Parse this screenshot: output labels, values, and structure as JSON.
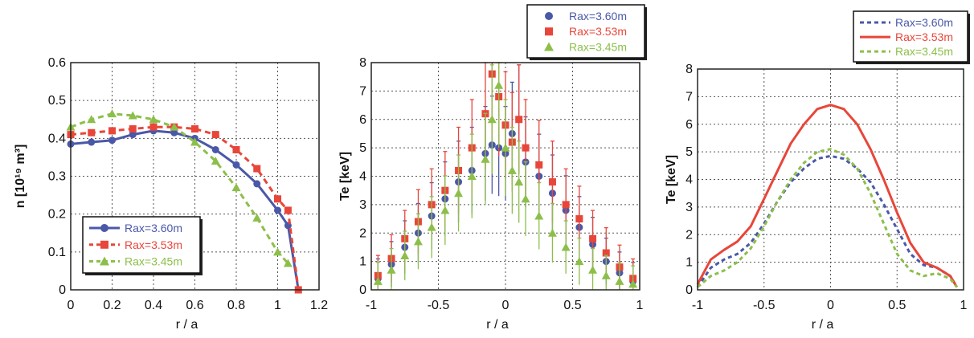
{
  "chart_data": [
    {
      "type": "line",
      "xlabel": "r / a",
      "ylabel": "n [10¹⁹ m³]",
      "xlim": [
        0,
        1.2
      ],
      "ylim": [
        0,
        0.6
      ],
      "xticks": [
        "0",
        "0.2",
        "0.4",
        "0.6",
        "0.8",
        "1",
        "1.2"
      ],
      "yticks": [
        "0",
        "0.1",
        "0.2",
        "0.3",
        "0.4",
        "0.5",
        "0.6"
      ],
      "grid": true,
      "legend_position": "bottom-left",
      "series": [
        {
          "name": "Rax=3.60m",
          "color": "#4a58a8",
          "marker": "circle",
          "dash": "solid",
          "x": [
            0,
            0.1,
            0.2,
            0.3,
            0.4,
            0.5,
            0.6,
            0.7,
            0.8,
            0.9,
            1.0,
            1.05,
            1.1
          ],
          "y": [
            0.385,
            0.39,
            0.395,
            0.41,
            0.42,
            0.415,
            0.4,
            0.37,
            0.33,
            0.28,
            0.21,
            0.17,
            0.0
          ]
        },
        {
          "name": "Rax=3.53m",
          "color": "#e8463a",
          "marker": "square",
          "dash": "dashed",
          "x": [
            0,
            0.1,
            0.2,
            0.3,
            0.4,
            0.5,
            0.6,
            0.7,
            0.8,
            0.9,
            1.0,
            1.05,
            1.1
          ],
          "y": [
            0.41,
            0.415,
            0.42,
            0.425,
            0.43,
            0.43,
            0.425,
            0.41,
            0.37,
            0.32,
            0.24,
            0.21,
            0.0
          ]
        },
        {
          "name": "Rax=3.45m",
          "color": "#8cbf4a",
          "marker": "triangle",
          "dash": "dashed",
          "x": [
            0,
            0.1,
            0.2,
            0.3,
            0.4,
            0.5,
            0.6,
            0.7,
            0.8,
            0.9,
            1.0,
            1.05
          ],
          "y": [
            0.43,
            0.45,
            0.465,
            0.46,
            0.45,
            0.43,
            0.39,
            0.34,
            0.27,
            0.19,
            0.1,
            0.07
          ]
        }
      ]
    },
    {
      "type": "scatter",
      "xlabel": "r / a",
      "ylabel": "Te [keV]",
      "xlim": [
        -1,
        1
      ],
      "ylim": [
        0,
        8
      ],
      "xticks": [
        "-1",
        "-0.5",
        "0",
        "0.5",
        "1"
      ],
      "yticks": [
        "0",
        "1",
        "2",
        "3",
        "4",
        "5",
        "6",
        "7",
        "8"
      ],
      "grid": true,
      "legend_position": "top (outside)",
      "series": [
        {
          "name": "Rax=3.60m",
          "color": "#4a58a8",
          "marker": "circle",
          "error_bars": true,
          "x": [
            -0.95,
            -0.85,
            -0.75,
            -0.65,
            -0.55,
            -0.45,
            -0.35,
            -0.25,
            -0.15,
            -0.1,
            -0.05,
            0.0,
            0.05,
            0.1,
            0.15,
            0.25,
            0.35,
            0.45,
            0.55,
            0.65,
            0.75,
            0.85,
            0.95
          ],
          "y": [
            0.4,
            0.9,
            1.5,
            2.0,
            2.6,
            3.2,
            3.8,
            4.2,
            4.8,
            5.1,
            5.0,
            4.8,
            5.5,
            6.0,
            4.5,
            4.0,
            3.4,
            2.8,
            2.2,
            1.6,
            1.0,
            0.6,
            0.3
          ]
        },
        {
          "name": "Rax=3.53m",
          "color": "#e8463a",
          "marker": "square",
          "error_bars": true,
          "x": [
            -0.95,
            -0.85,
            -0.75,
            -0.65,
            -0.55,
            -0.45,
            -0.35,
            -0.25,
            -0.15,
            -0.1,
            -0.05,
            0.0,
            0.05,
            0.1,
            0.15,
            0.25,
            0.35,
            0.45,
            0.55,
            0.65,
            0.75,
            0.85,
            0.95
          ],
          "y": [
            0.5,
            1.1,
            1.8,
            2.4,
            3.0,
            3.5,
            4.2,
            5.0,
            6.2,
            7.6,
            6.8,
            5.8,
            5.2,
            6.0,
            5.0,
            4.4,
            3.8,
            3.0,
            2.5,
            1.8,
            1.3,
            0.8,
            0.4
          ]
        },
        {
          "name": "Rax=3.45m",
          "color": "#8cbf4a",
          "marker": "triangle",
          "error_bars": true,
          "x": [
            -0.95,
            -0.85,
            -0.75,
            -0.65,
            -0.55,
            -0.45,
            -0.35,
            -0.25,
            -0.15,
            -0.1,
            -0.05,
            0.0,
            0.05,
            0.1,
            0.15,
            0.25,
            0.35,
            0.45,
            0.55,
            0.65,
            0.75,
            0.85,
            0.95
          ],
          "y": [
            0.3,
            0.7,
            1.2,
            1.7,
            2.2,
            2.8,
            3.4,
            4.0,
            4.6,
            6.0,
            7.2,
            5.0,
            4.2,
            3.8,
            3.2,
            2.6,
            2.0,
            1.5,
            1.0,
            0.7,
            0.5,
            0.3,
            0.2
          ]
        }
      ]
    },
    {
      "type": "line",
      "xlabel": "r / a",
      "ylabel": "Te [keV]",
      "xlim": [
        -1,
        1
      ],
      "ylim": [
        0,
        8
      ],
      "xticks": [
        "-1",
        "-0.5",
        "0",
        "0.5",
        "1"
      ],
      "yticks": [
        "0",
        "1",
        "2",
        "3",
        "4",
        "5",
        "6",
        "7",
        "8"
      ],
      "grid": true,
      "legend_position": "top (outside)",
      "series": [
        {
          "name": "Rax=3.60m",
          "color": "#4a58a8",
          "dash": "dashed",
          "x": [
            -1,
            -0.9,
            -0.8,
            -0.7,
            -0.6,
            -0.5,
            -0.4,
            -0.3,
            -0.2,
            -0.1,
            0,
            0.1,
            0.2,
            0.3,
            0.4,
            0.5,
            0.6,
            0.7,
            0.8,
            0.9,
            0.95
          ],
          "y": [
            0.1,
            0.8,
            1.1,
            1.3,
            1.7,
            2.4,
            3.2,
            3.9,
            4.4,
            4.75,
            4.85,
            4.75,
            4.4,
            3.9,
            3.1,
            2.2,
            1.3,
            0.9,
            0.8,
            0.5,
            0.1
          ]
        },
        {
          "name": "Rax=3.53m",
          "color": "#e8463a",
          "dash": "solid",
          "x": [
            -1,
            -0.9,
            -0.8,
            -0.7,
            -0.6,
            -0.5,
            -0.4,
            -0.3,
            -0.2,
            -0.1,
            0,
            0.1,
            0.2,
            0.3,
            0.4,
            0.5,
            0.6,
            0.7,
            0.8,
            0.9,
            0.95
          ],
          "y": [
            0.2,
            1.1,
            1.45,
            1.75,
            2.3,
            3.3,
            4.3,
            5.3,
            6.0,
            6.55,
            6.7,
            6.55,
            6.0,
            5.1,
            4.0,
            2.8,
            1.7,
            1.0,
            0.8,
            0.5,
            0.1
          ]
        },
        {
          "name": "Rax=3.45m",
          "color": "#8cbf4a",
          "dash": "dashed",
          "x": [
            -1,
            -0.9,
            -0.8,
            -0.7,
            -0.6,
            -0.5,
            -0.4,
            -0.3,
            -0.2,
            -0.1,
            0,
            0.1,
            0.2,
            0.3,
            0.4,
            0.5,
            0.6,
            0.7,
            0.8,
            0.9,
            0.95
          ],
          "y": [
            0.1,
            0.5,
            0.7,
            1.0,
            1.5,
            2.3,
            3.2,
            4.0,
            4.6,
            5.0,
            5.1,
            4.9,
            4.4,
            3.5,
            2.4,
            1.3,
            0.7,
            0.5,
            0.6,
            0.4,
            0.1
          ]
        }
      ]
    }
  ]
}
